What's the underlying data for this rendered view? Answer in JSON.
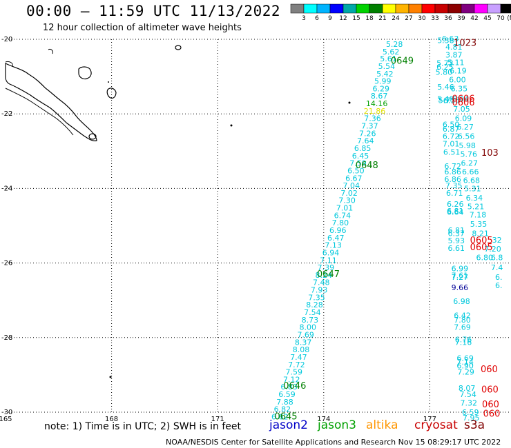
{
  "header": {
    "title": "00:00 – 11:59 UTC 11/13/2022",
    "subtitle": "12 hour collection of altimeter wave heights"
  },
  "legend": {
    "colors": [
      "#808080",
      "#00ffff",
      "#00b4ff",
      "#0000ff",
      "#00a8a8",
      "#00d200",
      "#008000",
      "#ffff00",
      "#ffb400",
      "#ff8000",
      "#ff0000",
      "#c80000",
      "#8c0000",
      "#800080",
      "#ff00ff",
      "#c8a0ff",
      "#000000"
    ],
    "ticks": [
      "3",
      "6",
      "9",
      "12",
      "15",
      "18",
      "21",
      "24",
      "27",
      "30",
      "33",
      "36",
      "39",
      "42",
      "45",
      "70"
    ],
    "unit": "(ft)"
  },
  "map": {
    "lat_labels": [
      "-20",
      "-22",
      "-24",
      "-26",
      "-28",
      "-30"
    ],
    "lon_labels": [
      "165",
      "168",
      "171",
      "174",
      "177"
    ],
    "track_colors": {
      "cyan": "#00c8dc",
      "blue": "#000096",
      "green": "#00a000",
      "yellow": "#e0e000",
      "pass": "#008000",
      "pass_red": "#e00000",
      "pass_dark": "#800000"
    }
  },
  "track_main": [
    {
      "v": "5.28",
      "lat": -20.13,
      "lon": 176.0
    },
    {
      "v": "5.62",
      "lat": -20.33,
      "lon": 175.9
    },
    {
      "v": "5.61",
      "lat": -20.52,
      "lon": 175.83
    },
    {
      "v": "5.54",
      "lat": -20.72,
      "lon": 175.78
    },
    {
      "v": "5.42",
      "lat": -20.92,
      "lon": 175.73
    },
    {
      "v": "5.99",
      "lat": -21.12,
      "lon": 175.67
    },
    {
      "v": "6.29",
      "lat": -21.32,
      "lon": 175.62
    },
    {
      "v": "8.67",
      "lat": -21.52,
      "lon": 175.57
    },
    {
      "v": "14.16",
      "lat": -21.72,
      "lon": 175.5,
      "c": "green"
    },
    {
      "v": "21.86",
      "lat": -21.92,
      "lon": 175.44,
      "c": "yellow"
    },
    {
      "v": "7.36",
      "lat": -22.12,
      "lon": 175.38
    },
    {
      "v": "7.37",
      "lat": -22.32,
      "lon": 175.3
    },
    {
      "v": "7.26",
      "lat": -22.52,
      "lon": 175.24
    },
    {
      "v": "7.64",
      "lat": -22.72,
      "lon": 175.18
    },
    {
      "v": "6.85",
      "lat": -22.92,
      "lon": 175.1
    },
    {
      "v": "6.45",
      "lat": -23.12,
      "lon": 175.04
    },
    {
      "v": "7.59",
      "lat": -23.32,
      "lon": 174.97
    },
    {
      "v": "6.50",
      "lat": -23.52,
      "lon": 174.91
    },
    {
      "v": "6.67",
      "lat": -23.72,
      "lon": 174.85
    },
    {
      "v": "7.04",
      "lat": -23.92,
      "lon": 174.78
    },
    {
      "v": "7.02",
      "lat": -24.12,
      "lon": 174.72
    },
    {
      "v": "7.30",
      "lat": -24.32,
      "lon": 174.66
    },
    {
      "v": "7.01",
      "lat": -24.52,
      "lon": 174.59
    },
    {
      "v": "6.74",
      "lat": -24.72,
      "lon": 174.53
    },
    {
      "v": "7.80",
      "lat": -24.92,
      "lon": 174.47
    },
    {
      "v": "6.96",
      "lat": -25.12,
      "lon": 174.4
    },
    {
      "v": "6.47",
      "lat": -25.32,
      "lon": 174.34
    },
    {
      "v": "7.13",
      "lat": -25.52,
      "lon": 174.27
    },
    {
      "v": "6.94",
      "lat": -25.72,
      "lon": 174.2
    },
    {
      "v": "7.11",
      "lat": -25.92,
      "lon": 174.13
    },
    {
      "v": "7.39",
      "lat": -26.12,
      "lon": 174.06
    },
    {
      "v": "8.24",
      "lat": -26.32,
      "lon": 174.0
    },
    {
      "v": "7.48",
      "lat": -26.52,
      "lon": 173.93
    },
    {
      "v": "7.93",
      "lat": -26.72,
      "lon": 173.87
    },
    {
      "v": "7.35",
      "lat": -26.92,
      "lon": 173.8
    },
    {
      "v": "8.28",
      "lat": -27.12,
      "lon": 173.74
    },
    {
      "v": "7.54",
      "lat": -27.32,
      "lon": 173.68
    },
    {
      "v": "8.73",
      "lat": -27.52,
      "lon": 173.61
    },
    {
      "v": "8.00",
      "lat": -27.72,
      "lon": 173.55
    },
    {
      "v": "7.69",
      "lat": -27.92,
      "lon": 173.49
    },
    {
      "v": "8.37",
      "lat": -28.12,
      "lon": 173.42
    },
    {
      "v": "8.08",
      "lat": -28.32,
      "lon": 173.36
    },
    {
      "v": "7.47",
      "lat": -28.52,
      "lon": 173.29
    },
    {
      "v": "7.72",
      "lat": -28.72,
      "lon": 173.23
    },
    {
      "v": "7.59",
      "lat": -28.92,
      "lon": 173.16
    },
    {
      "v": "7.12",
      "lat": -29.12,
      "lon": 173.09
    },
    {
      "v": "6.83",
      "lat": -29.32,
      "lon": 173.02
    },
    {
      "v": "6.59",
      "lat": -29.52,
      "lon": 172.96
    },
    {
      "v": "7.88",
      "lat": -29.72,
      "lon": 172.9
    },
    {
      "v": "6.82",
      "lat": -29.92,
      "lon": 172.83
    },
    {
      "v": "6.62",
      "lat": -30.12,
      "lon": 172.76
    }
  ],
  "track_right": [
    {
      "v": "6.63",
      "lat": -19.98,
      "lon": 177.58
    },
    {
      "v": "5.38",
      "lat": -20.03,
      "lon": 177.45
    },
    {
      "v": "4.81",
      "lat": -20.2,
      "lon": 177.68
    },
    {
      "v": "3.87",
      "lat": -20.42,
      "lon": 177.68
    },
    {
      "v": "5.11",
      "lat": -20.62,
      "lon": 177.74
    },
    {
      "v": "5.73",
      "lat": -20.64,
      "lon": 177.43
    },
    {
      "v": "6.25",
      "lat": -20.74,
      "lon": 177.43
    },
    {
      "v": "6.19",
      "lat": -20.84,
      "lon": 177.8
    },
    {
      "v": "5.80",
      "lat": -20.88,
      "lon": 177.4
    },
    {
      "v": "6.00",
      "lat": -21.08,
      "lon": 177.78
    },
    {
      "v": "5.46",
      "lat": -21.28,
      "lon": 177.45
    },
    {
      "v": "6.35",
      "lat": -21.32,
      "lon": 177.83
    },
    {
      "v": "5.48",
      "lat": -21.6,
      "lon": 177.45
    },
    {
      "v": "6.04",
      "lat": -21.6,
      "lon": 177.87
    },
    {
      "v": "5.75",
      "lat": -21.64,
      "lon": 177.48
    },
    {
      "v": "6.15",
      "lat": -21.64,
      "lon": 177.62
    },
    {
      "v": "7.05",
      "lat": -21.87,
      "lon": 177.9
    },
    {
      "v": "6.09",
      "lat": -22.12,
      "lon": 177.95
    },
    {
      "v": "6.50",
      "lat": -22.28,
      "lon": 177.6
    },
    {
      "v": "6.27",
      "lat": -22.35,
      "lon": 178.0
    },
    {
      "v": "6.87",
      "lat": -22.4,
      "lon": 177.6
    },
    {
      "v": "6.72",
      "lat": -22.6,
      "lon": 177.6
    },
    {
      "v": "6.56",
      "lat": -22.6,
      "lon": 178.03
    },
    {
      "v": "7.01",
      "lat": -22.8,
      "lon": 177.6
    },
    {
      "v": "5.98",
      "lat": -22.85,
      "lon": 178.06
    },
    {
      "v": "6.51",
      "lat": -23.02,
      "lon": 177.62
    },
    {
      "v": "5.76",
      "lat": -23.08,
      "lon": 178.1
    },
    {
      "v": "6.72",
      "lat": -23.4,
      "lon": 177.65
    },
    {
      "v": "6.27",
      "lat": -23.32,
      "lon": 178.12
    },
    {
      "v": "6.86",
      "lat": -23.55,
      "lon": 177.65
    },
    {
      "v": "6.66",
      "lat": -23.55,
      "lon": 178.15
    },
    {
      "v": "6.86",
      "lat": -23.75,
      "lon": 177.65
    },
    {
      "v": "6.68",
      "lat": -23.78,
      "lon": 178.18
    },
    {
      "v": "7.35",
      "lat": -23.92,
      "lon": 177.68
    },
    {
      "v": "5.31",
      "lat": -24.0,
      "lon": 178.21
    },
    {
      "v": "6.71",
      "lat": -24.12,
      "lon": 177.7
    },
    {
      "v": "6.34",
      "lat": -24.25,
      "lon": 178.26
    },
    {
      "v": "6.26",
      "lat": -24.42,
      "lon": 177.72
    },
    {
      "v": "5.21",
      "lat": -24.48,
      "lon": 178.3
    },
    {
      "v": "6.81",
      "lat": -24.6,
      "lon": 177.72
    },
    {
      "v": "6.64",
      "lat": -24.63,
      "lon": 177.72
    },
    {
      "v": "7.18",
      "lat": -24.7,
      "lon": 178.36
    },
    {
      "v": "5.35",
      "lat": -24.95,
      "lon": 178.38
    },
    {
      "v": "6.81",
      "lat": -25.12,
      "lon": 177.75
    },
    {
      "v": "8.21",
      "lat": -25.2,
      "lon": 178.43
    },
    {
      "v": "6.37",
      "lat": -25.2,
      "lon": 177.75
    },
    {
      "v": "5.93",
      "lat": -25.4,
      "lon": 177.75
    },
    {
      "v": "6.61",
      "lat": -25.6,
      "lon": 177.75
    },
    {
      "v": "6.80",
      "lat": -25.85,
      "lon": 178.55
    },
    {
      "v": "6.99",
      "lat": -26.15,
      "lon": 177.85
    },
    {
      "v": "7.61",
      "lat": -26.33,
      "lon": 177.85
    },
    {
      "v": "7.27",
      "lat": -26.38,
      "lon": 177.85
    },
    {
      "v": "9.66",
      "lat": -26.65,
      "lon": 177.85,
      "c": "blue"
    },
    {
      "v": "6.98",
      "lat": -27.02,
      "lon": 177.9
    },
    {
      "v": "6.42",
      "lat": -27.4,
      "lon": 177.92
    },
    {
      "v": "7.80",
      "lat": -27.52,
      "lon": 177.92
    },
    {
      "v": "7.69",
      "lat": -27.72,
      "lon": 177.92
    },
    {
      "v": "6.76",
      "lat": -28.05,
      "lon": 177.95
    },
    {
      "v": "7.16",
      "lat": -28.12,
      "lon": 177.95
    },
    {
      "v": "6.69",
      "lat": -28.55,
      "lon": 178.0
    },
    {
      "v": "7.14",
      "lat": -28.65,
      "lon": 178.0
    },
    {
      "v": "6.90",
      "lat": -28.75,
      "lon": 178.0
    },
    {
      "v": "7.29",
      "lat": -28.92,
      "lon": 178.02
    },
    {
      "v": "8.07",
      "lat": -29.35,
      "lon": 178.05
    },
    {
      "v": "7.54",
      "lat": -29.52,
      "lon": 178.08
    },
    {
      "v": "7.32",
      "lat": -29.75,
      "lon": 178.1
    },
    {
      "v": "6.59",
      "lat": -30.0,
      "lon": 178.15
    },
    {
      "v": "7.95",
      "lat": -30.15,
      "lon": 178.17
    }
  ],
  "edge_values": [
    {
      "v": "6.8",
      "lat": -25.85,
      "lon": 178.9
    },
    {
      "v": "7.4",
      "lat": -26.12,
      "lon": 178.9
    },
    {
      "v": "6.",
      "lat": -26.38,
      "lon": 178.95
    },
    {
      "v": "6.",
      "lat": -26.6,
      "lon": 178.95
    },
    {
      "v": "7.20",
      "lat": -25.62,
      "lon": 178.78
    },
    {
      "v": "32",
      "lat": -25.38,
      "lon": 178.9
    }
  ],
  "passes": [
    {
      "label": "0649",
      "lat": -20.58,
      "lon": 176.22,
      "c": "pass"
    },
    {
      "label": "0648",
      "lat": -23.38,
      "lon": 175.22,
      "c": "pass"
    },
    {
      "label": "0647",
      "lat": -26.3,
      "lon": 174.13,
      "c": "pass"
    },
    {
      "label": "0646",
      "lat": -29.3,
      "lon": 173.18,
      "c": "pass"
    },
    {
      "label": "0645",
      "lat": -30.12,
      "lon": 172.93,
      "c": "pass"
    },
    {
      "label": "1023",
      "lat": -20.1,
      "lon": 178.0,
      "c": "pass_dark"
    },
    {
      "label": "0606",
      "lat": -21.6,
      "lon": 177.95,
      "c": "pass_red"
    },
    {
      "label": "0606",
      "lat": -21.7,
      "lon": 177.95,
      "c": "pass_red"
    },
    {
      "label": "103",
      "lat": -23.05,
      "lon": 178.7,
      "c": "pass_dark"
    },
    {
      "label": "0605",
      "lat": -25.4,
      "lon": 178.46,
      "c": "pass_red"
    },
    {
      "label": "0605",
      "lat": -25.58,
      "lon": 178.46,
      "c": "pass_red"
    },
    {
      "label": "060",
      "lat": -28.85,
      "lon": 178.68,
      "c": "pass_red"
    },
    {
      "label": "060",
      "lat": -29.4,
      "lon": 178.7,
      "c": "pass_red"
    },
    {
      "label": "060",
      "lat": -29.8,
      "lon": 178.72,
      "c": "pass_red"
    },
    {
      "label": "060",
      "lat": -30.05,
      "lon": 178.75,
      "c": "pass_red"
    }
  ],
  "note": "note: 1) Time is in UTC; 2) SWH is in feet",
  "satellites": [
    {
      "name": "jason2",
      "color": "#0000c8"
    },
    {
      "name": "jason3",
      "color": "#00a000"
    },
    {
      "name": "altika",
      "color": "#ff9600"
    },
    {
      "name": "cryosat",
      "color": "#c80000"
    },
    {
      "name": "s3a",
      "color": "#800000"
    }
  ],
  "footer_credit": "NOAA/NESDIS Center for Satellite Applications and Research   Nov 15 08:29:17 UTC 2022"
}
